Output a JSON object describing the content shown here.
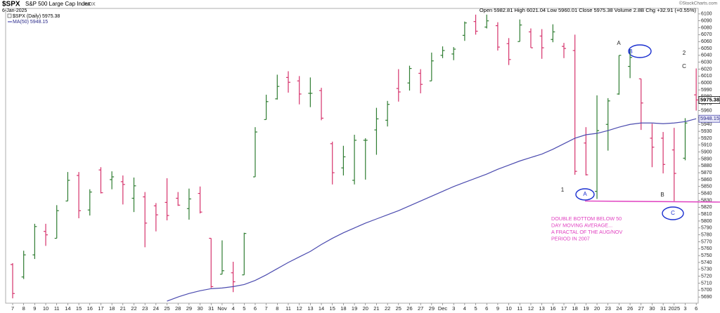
{
  "chart_data": {
    "type": "ohlc",
    "title": "$SPX",
    "subtitle": "S&P 500 Large Cap Index",
    "exchange": "INDX",
    "date": "6-Jan-2025",
    "quote": "Open 5982.81  High 6021.04  Low 5960.01  Close 5975.38  Volume 2.8B  Chg +32.91 (+0.55%)",
    "credit": "©StockCharts.com",
    "categories": [
      "7",
      "8",
      "9",
      "10",
      "11",
      "14",
      "15",
      "16",
      "17",
      "18",
      "21",
      "22",
      "23",
      "24",
      "25",
      "28",
      "29",
      "30",
      "31",
      "Nov",
      "4",
      "5",
      "6",
      "7",
      "8",
      "11",
      "12",
      "13",
      "14",
      "15",
      "18",
      "19",
      "20",
      "21",
      "22",
      "25",
      "26",
      "27",
      "29",
      "Dec",
      "3",
      "4",
      "5",
      "6",
      "9",
      "10",
      "11",
      "12",
      "13",
      "16",
      "17",
      "18",
      "19",
      "20",
      "23",
      "24",
      "26",
      "27",
      "30",
      "31",
      "2025",
      "3",
      "6"
    ],
    "ohlc": {
      "name": "$SPX (Daily) 5975.38",
      "up_color": "#2f7d32",
      "down_color": "#d6336c",
      "open": [
        5737,
        5719,
        5751,
        5785,
        5775,
        5829,
        5866,
        5816,
        5874,
        5860,
        5857,
        5833,
        5835,
        5822,
        5827,
        5833,
        5818,
        5840,
        5775,
        5723,
        5725,
        5722,
        5864,
        5947,
        5977,
        6008,
        6003,
        5985,
        5989,
        5912,
        5877,
        5859,
        5917,
        5932,
        5946,
        5992,
        6000,
        6014,
        6003,
        6040,
        6042,
        6069,
        6089,
        6081,
        6083,
        6057,
        6060,
        6074,
        6068,
        6063,
        6053,
        6047,
        5913,
        5843,
        5940,
        5984,
        6024,
        6006,
        5920,
        5920,
        5903,
        5891,
        5982.81
      ],
      "high": [
        5739,
        5757,
        5796,
        5796,
        5823,
        5871,
        5871,
        5846,
        5878,
        5872,
        5866,
        5863,
        5842,
        5826,
        5862,
        5842,
        5847,
        5850,
        5775,
        5772,
        5741,
        5783,
        5936,
        5983,
        6012,
        6017,
        6010,
        6008,
        5993,
        5915,
        5909,
        5925,
        5920,
        5964,
        5974,
        6020,
        6025,
        6020,
        6044,
        6053,
        6052,
        6089,
        6099,
        6099,
        6088,
        6065,
        6092,
        6079,
        6078,
        6085,
        6058,
        6070,
        5936,
        5982,
        5978,
        6040,
        6049,
        6006,
        5941,
        5929,
        5935,
        5949,
        6021.04
      ],
      "low": [
        5688,
        5716,
        5745,
        5764,
        5775,
        5829,
        5804,
        5808,
        5840,
        5846,
        5824,
        5813,
        5762,
        5785,
        5801,
        5822,
        5802,
        5811,
        5703,
        5723,
        5697,
        5722,
        5864,
        5947,
        5976,
        5986,
        5969,
        5965,
        5946,
        5853,
        5866,
        5853,
        5860,
        5896,
        5937,
        5973,
        5989,
        5985,
        6003,
        6036,
        6033,
        6061,
        6070,
        6079,
        6047,
        6026,
        6060,
        6051,
        6035,
        6059,
        6036,
        5867,
        5866,
        5832,
        5902,
        5983,
        6007,
        5932,
        5878,
        5869,
        5829,
        5888,
        5960.01
      ],
      "close": [
        5695,
        5751,
        5792,
        5780,
        5815,
        5859,
        5815,
        5842,
        5841,
        5864,
        5853,
        5851,
        5797,
        5809,
        5808,
        5823,
        5832,
        5813,
        5705,
        5728,
        5712,
        5782,
        5929,
        5973,
        5995,
        6001,
        5984,
        5985,
        5949,
        5870,
        5893,
        5917,
        5917,
        5948,
        5969,
        5987,
        6021,
        5998,
        6032,
        6047,
        6049,
        6087,
        6075,
        6090,
        6052,
        6034,
        6084,
        6051,
        6051,
        6074,
        6050,
        5872,
        5867,
        5931,
        5974,
        6040,
        6037,
        5971,
        5907,
        5882,
        5869,
        5942,
        5975.38
      ]
    },
    "ma": {
      "name": "MA(50) 5948.15",
      "color": "#4b4baf",
      "values": [
        null,
        null,
        null,
        null,
        null,
        null,
        null,
        null,
        null,
        null,
        null,
        null,
        null,
        null,
        5684,
        5690,
        5695,
        5699,
        5702,
        5703,
        5705,
        5708,
        5714,
        5722,
        5731,
        5740,
        5748,
        5756,
        5766,
        5775,
        5783,
        5790,
        5797,
        5803,
        5809,
        5815,
        5822,
        5829,
        5836,
        5843,
        5850,
        5856,
        5862,
        5868,
        5875,
        5881,
        5887,
        5892,
        5897,
        5904,
        5912,
        5920,
        5925,
        5927,
        5931,
        5936,
        5940,
        5942,
        5942,
        5941,
        5942,
        5944,
        5948.15
      ]
    },
    "price_tags": [
      5975.38,
      5948.15
    ],
    "support_line": 5829,
    "annotations": [
      "A",
      "B",
      "2",
      "C",
      "1",
      "A",
      "B",
      "C"
    ],
    "note": [
      "DOUBLE BOTTOM BELOW 50",
      "DAY MOVING AVERAGE...",
      "A FRACTAL OF THE AUG/NOV",
      "PERIOD IN 2007"
    ],
    "note_color": "#e040c0",
    "ylim": [
      5681,
      6108
    ],
    "yticks": [
      5690,
      5700,
      5710,
      5720,
      5730,
      5740,
      5750,
      5760,
      5770,
      5780,
      5790,
      5800,
      5810,
      5820,
      5830,
      5840,
      5850,
      5860,
      5870,
      5880,
      5890,
      5900,
      5910,
      5920,
      5930,
      5940,
      5950,
      5960,
      5970,
      5980,
      5990,
      6000,
      6010,
      6020,
      6030,
      6040,
      6050,
      6060,
      6070,
      6080,
      6090,
      6100
    ]
  }
}
